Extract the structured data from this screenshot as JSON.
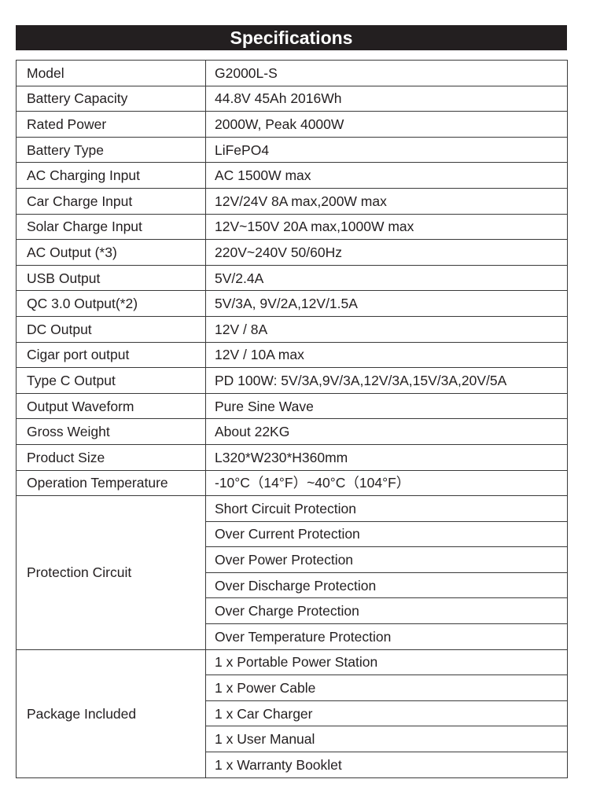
{
  "title": "Specifications",
  "rows": [
    {
      "label": "Model",
      "value": "G2000L-S"
    },
    {
      "label": "Battery Capacity",
      "value": "44.8V  45Ah 2016Wh"
    },
    {
      "label": "Rated  Power",
      "value": "2000W, Peak 4000W"
    },
    {
      "label": "Battery Type",
      "value": "LiFePO4"
    },
    {
      "label": "AC Charging Input",
      "value": "AC 1500W max"
    },
    {
      "label": "Car Charge Input",
      "value": "12V/24V 8A max,200W max"
    },
    {
      "label": "Solar Charge Input",
      "value": "12V~150V 20A max,1000W max"
    },
    {
      "label": "AC Output (*3)",
      "value": "220V~240V 50/60Hz"
    },
    {
      "label": "USB Output",
      "value": "5V/2.4A"
    },
    {
      "label": "QC 3.0 Output(*2)",
      "value": "5V/3A, 9V/2A,12V/1.5A"
    },
    {
      "label": "DC Output",
      "value": "12V / 8A"
    },
    {
      "label": "Cigar port output",
      "value": "12V / 10A max"
    },
    {
      "label": "Type C Output",
      "value": "PD 100W: 5V/3A,9V/3A,12V/3A,15V/3A,20V/5A"
    },
    {
      "label": "Output Waveform",
      "value": "Pure Sine Wave"
    },
    {
      "label": "Gross Weight",
      "value": "About 22KG"
    },
    {
      "label": "Product Size",
      "value": "L320*W230*H360mm"
    },
    {
      "label": "Operation Temperature",
      "value": "-10°C（14°F）~40°C（104°F）"
    }
  ],
  "groups": [
    {
      "label": "Protection Circuit",
      "values": [
        "Short Circuit Protection",
        "Over Current Protection",
        "Over Power Protection",
        "Over Discharge Protection",
        "Over Charge Protection",
        "Over Temperature Protection"
      ]
    },
    {
      "label": "Package Included",
      "values": [
        "1 x Portable Power Station",
        "1 x Power Cable",
        "1 x Car Charger",
        "1 x User Manual",
        "1 x Warranty Booklet"
      ]
    }
  ]
}
